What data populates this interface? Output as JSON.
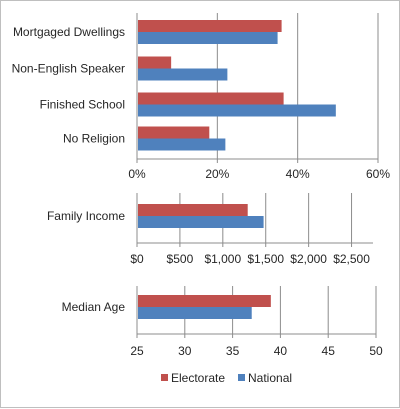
{
  "colors": {
    "electorate": "#c0504d",
    "national": "#4f81bd",
    "grid": "#8c8c8c",
    "axis": "#8c8c8c",
    "text": "#262626"
  },
  "chart_data": [
    {
      "type": "bar",
      "orientation": "horizontal",
      "categories": [
        "Mortgaged Dwellings",
        "Non-English Speaker",
        "Finished School",
        "No Religion"
      ],
      "series": [
        {
          "name": "Electorate",
          "values": [
            0.36,
            0.085,
            0.365,
            0.18
          ]
        },
        {
          "name": "National",
          "values": [
            0.35,
            0.225,
            0.495,
            0.22
          ]
        }
      ],
      "xlim": [
        0,
        0.6
      ],
      "ticks": [
        0,
        0.2,
        0.4,
        0.6
      ],
      "tick_labels": [
        "0%",
        "20%",
        "40%",
        "60%"
      ],
      "grid": true
    },
    {
      "type": "bar",
      "orientation": "horizontal",
      "categories": [
        "Family Income"
      ],
      "series": [
        {
          "name": "Electorate",
          "values": [
            1290
          ]
        },
        {
          "name": "National",
          "values": [
            1475
          ]
        }
      ],
      "xlim": [
        0,
        2750
      ],
      "ticks": [
        0,
        500,
        1000,
        1500,
        2000,
        2500
      ],
      "tick_labels": [
        "$0",
        "$500",
        "$1,000",
        "$1,500",
        "$2,000",
        "$2,500"
      ],
      "grid": true
    },
    {
      "type": "bar",
      "orientation": "horizontal",
      "categories": [
        "Median Age"
      ],
      "series": [
        {
          "name": "Electorate",
          "values": [
            39
          ]
        },
        {
          "name": "National",
          "values": [
            37
          ]
        }
      ],
      "xlim": [
        25,
        50
      ],
      "ticks": [
        25,
        30,
        35,
        40,
        45,
        50
      ],
      "tick_labels": [
        "25",
        "30",
        "35",
        "40",
        "45",
        "50"
      ],
      "grid": true
    }
  ],
  "legend": {
    "position": "bottom",
    "items": [
      {
        "label": "Electorate",
        "color_key": "electorate"
      },
      {
        "label": "National",
        "color_key": "national"
      }
    ]
  }
}
